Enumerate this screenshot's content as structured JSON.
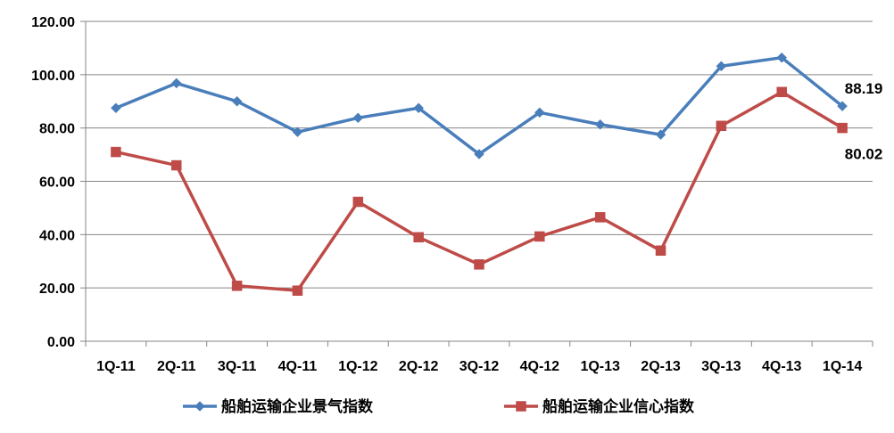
{
  "chart_data": {
    "type": "line",
    "categories": [
      "1Q-11",
      "2Q-11",
      "3Q-11",
      "4Q-11",
      "1Q-12",
      "2Q-12",
      "3Q-12",
      "4Q-12",
      "1Q-13",
      "2Q-13",
      "3Q-13",
      "4Q-13",
      "1Q-14"
    ],
    "ylim": [
      0,
      120
    ],
    "yticks": [
      "0.00",
      "20.00",
      "40.00",
      "60.00",
      "80.00",
      "100.00",
      "120.00"
    ],
    "grid": true,
    "legend_position": "bottom",
    "series": [
      {
        "name": "船舶运输企业景气指数",
        "color": "#4a7ebb",
        "marker": "diamond",
        "values": [
          87.5,
          96.8,
          90.0,
          78.5,
          83.8,
          87.5,
          70.2,
          85.8,
          81.3,
          77.5,
          103.2,
          106.4,
          88.19
        ],
        "end_label": "88.19"
      },
      {
        "name": "船舶运输企业信心指数",
        "color": "#be4b48",
        "marker": "square",
        "values": [
          71.0,
          66.0,
          20.8,
          19.0,
          52.3,
          39.0,
          28.8,
          39.3,
          46.5,
          34.0,
          80.8,
          93.5,
          80.02
        ],
        "end_label": "80.02"
      }
    ]
  }
}
